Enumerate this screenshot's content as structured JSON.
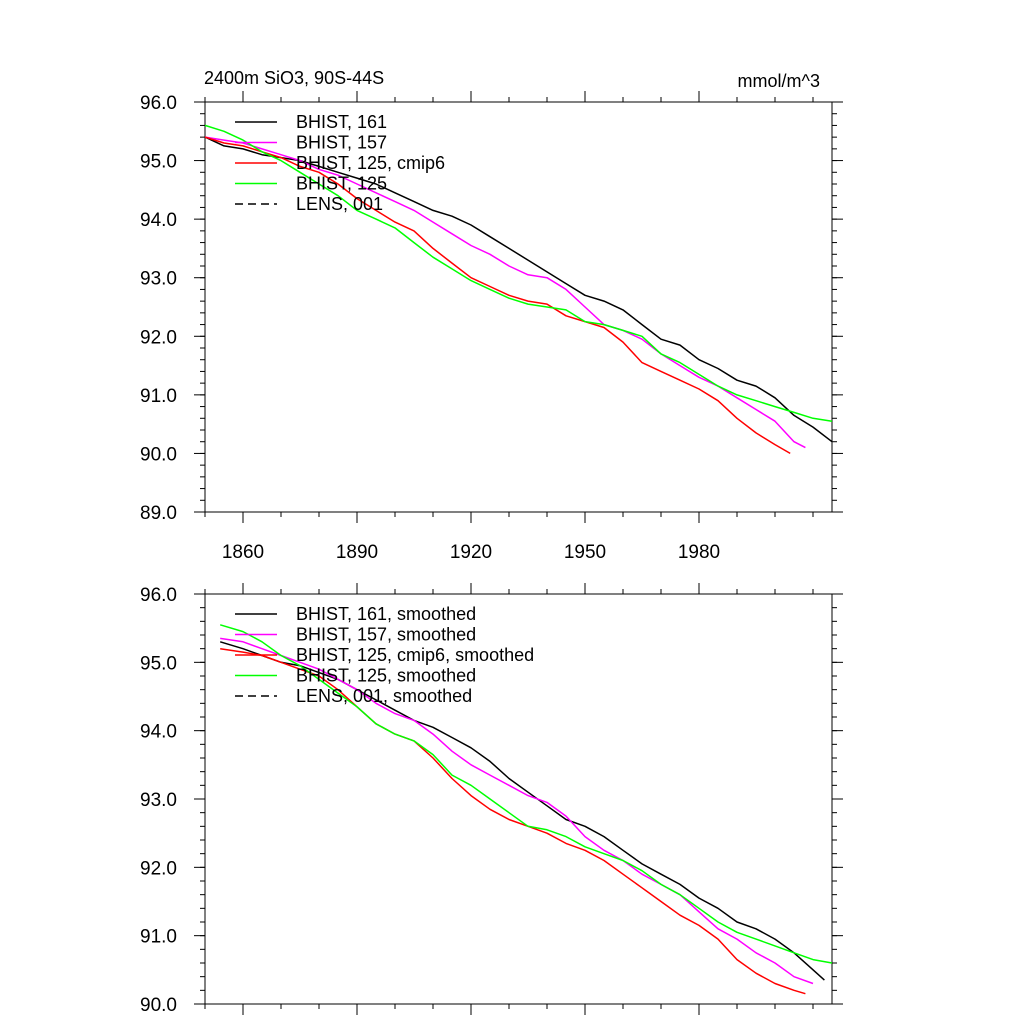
{
  "figure": {
    "title_left": "2400m SiO3, 90S-44S",
    "title_right": "mmol/m^3"
  },
  "chart_data": [
    {
      "type": "line",
      "panel": "top",
      "xlim": [
        1850,
        2015
      ],
      "ylim": [
        89.0,
        96.0
      ],
      "x_ticks": [
        1860,
        1890,
        1920,
        1950,
        1980
      ],
      "x_tick_labels": [
        "1860",
        "1890",
        "1920",
        "1950",
        "1980"
      ],
      "y_ticks": [
        89.0,
        90.0,
        91.0,
        92.0,
        93.0,
        94.0,
        95.0,
        96.0
      ],
      "y_tick_labels": [
        "89.0",
        "90.0",
        "91.0",
        "92.0",
        "93.0",
        "94.0",
        "95.0",
        "96.0"
      ],
      "grid": false,
      "legend": "top-left",
      "series": [
        {
          "name": "BHIST, 161",
          "color": "#000000",
          "dash": "solid",
          "x": [
            1850,
            1855,
            1860,
            1865,
            1870,
            1875,
            1880,
            1885,
            1890,
            1895,
            1900,
            1905,
            1910,
            1915,
            1920,
            1925,
            1930,
            1935,
            1940,
            1945,
            1950,
            1955,
            1960,
            1965,
            1970,
            1975,
            1980,
            1985,
            1990,
            1995,
            2000,
            2005,
            2010,
            2015
          ],
          "y": [
            95.4,
            95.25,
            95.2,
            95.1,
            95.05,
            95.0,
            94.9,
            94.8,
            94.7,
            94.6,
            94.45,
            94.3,
            94.15,
            94.05,
            93.9,
            93.7,
            93.5,
            93.3,
            93.1,
            92.9,
            92.7,
            92.6,
            92.45,
            92.2,
            91.95,
            91.85,
            91.6,
            91.45,
            91.25,
            91.15,
            90.95,
            90.65,
            90.45,
            90.2
          ]
        },
        {
          "name": "BHIST, 157",
          "color": "#ff00ff",
          "dash": "solid",
          "x": [
            1850,
            1855,
            1860,
            1865,
            1870,
            1875,
            1880,
            1885,
            1890,
            1895,
            1900,
            1905,
            1910,
            1915,
            1920,
            1925,
            1930,
            1935,
            1940,
            1945,
            1950,
            1955,
            1960,
            1965,
            1970,
            1975,
            1980,
            1985,
            1990,
            1995,
            2000,
            2005,
            2008
          ],
          "y": [
            95.4,
            95.35,
            95.3,
            95.2,
            95.1,
            95.0,
            94.85,
            94.75,
            94.6,
            94.45,
            94.3,
            94.15,
            93.95,
            93.75,
            93.55,
            93.4,
            93.2,
            93.05,
            93.0,
            92.8,
            92.5,
            92.2,
            92.1,
            91.95,
            91.7,
            91.5,
            91.3,
            91.15,
            90.95,
            90.75,
            90.55,
            90.2,
            90.1
          ]
        },
        {
          "name": "BHIST, 125, cmip6",
          "color": "#ff0000",
          "dash": "solid",
          "x": [
            1850,
            1855,
            1860,
            1865,
            1870,
            1875,
            1880,
            1885,
            1890,
            1895,
            1900,
            1905,
            1910,
            1915,
            1920,
            1925,
            1930,
            1935,
            1940,
            1945,
            1950,
            1955,
            1960,
            1965,
            1970,
            1975,
            1980,
            1985,
            1990,
            1995,
            2000,
            2004
          ],
          "y": [
            95.4,
            95.3,
            95.25,
            95.15,
            95.05,
            94.9,
            94.8,
            94.6,
            94.35,
            94.15,
            93.95,
            93.8,
            93.5,
            93.25,
            93.0,
            92.85,
            92.7,
            92.6,
            92.55,
            92.35,
            92.25,
            92.15,
            91.9,
            91.55,
            91.4,
            91.25,
            91.1,
            90.9,
            90.6,
            90.35,
            90.15,
            90.0
          ]
        },
        {
          "name": "BHIST, 125",
          "color": "#00ff00",
          "dash": "solid",
          "x": [
            1850,
            1855,
            1860,
            1865,
            1870,
            1875,
            1880,
            1885,
            1890,
            1895,
            1900,
            1905,
            1910,
            1915,
            1920,
            1925,
            1930,
            1935,
            1940,
            1945,
            1950,
            1955,
            1960,
            1965,
            1970,
            1975,
            1980,
            1985,
            1990,
            1995,
            2000,
            2005,
            2010,
            2015
          ],
          "y": [
            95.6,
            95.5,
            95.35,
            95.15,
            95.0,
            94.8,
            94.6,
            94.4,
            94.15,
            94.0,
            93.85,
            93.6,
            93.35,
            93.15,
            92.95,
            92.8,
            92.65,
            92.55,
            92.5,
            92.45,
            92.25,
            92.2,
            92.1,
            92.0,
            91.7,
            91.55,
            91.35,
            91.15,
            91.0,
            90.9,
            90.8,
            90.7,
            90.6,
            90.55
          ]
        },
        {
          "name": "LENS, 001",
          "color": "#000000",
          "dash": "dashed",
          "x": [],
          "y": []
        }
      ]
    },
    {
      "type": "line",
      "panel": "bottom",
      "xlim": [
        1850,
        2015
      ],
      "ylim": [
        90.0,
        96.0
      ],
      "x_ticks": [
        1860,
        1890,
        1920,
        1950,
        1980
      ],
      "y_ticks": [
        90.0,
        91.0,
        92.0,
        93.0,
        94.0,
        95.0,
        96.0
      ],
      "y_tick_labels": [
        "90.0",
        "91.0",
        "92.0",
        "93.0",
        "94.0",
        "95.0",
        "96.0"
      ],
      "grid": false,
      "legend": "top-left",
      "series": [
        {
          "name": "BHIST, 161, smoothed",
          "color": "#000000",
          "dash": "solid",
          "x": [
            1854,
            1860,
            1865,
            1870,
            1875,
            1880,
            1885,
            1890,
            1895,
            1900,
            1905,
            1910,
            1915,
            1920,
            1925,
            1930,
            1935,
            1940,
            1945,
            1950,
            1955,
            1960,
            1965,
            1970,
            1975,
            1980,
            1985,
            1990,
            1995,
            2000,
            2005,
            2010,
            2013
          ],
          "y": [
            95.3,
            95.2,
            95.1,
            95.0,
            94.95,
            94.85,
            94.75,
            94.6,
            94.45,
            94.3,
            94.15,
            94.05,
            93.9,
            93.75,
            93.55,
            93.3,
            93.1,
            92.9,
            92.7,
            92.6,
            92.45,
            92.25,
            92.05,
            91.9,
            91.75,
            91.55,
            91.4,
            91.2,
            91.1,
            90.95,
            90.75,
            90.5,
            90.35
          ]
        },
        {
          "name": "BHIST, 157, smoothed",
          "color": "#ff00ff",
          "dash": "solid",
          "x": [
            1854,
            1860,
            1865,
            1870,
            1875,
            1880,
            1885,
            1890,
            1895,
            1900,
            1905,
            1910,
            1915,
            1920,
            1925,
            1930,
            1935,
            1940,
            1945,
            1950,
            1955,
            1960,
            1965,
            1970,
            1975,
            1980,
            1985,
            1990,
            1995,
            2000,
            2005,
            2010
          ],
          "y": [
            95.35,
            95.3,
            95.2,
            95.1,
            95.0,
            94.9,
            94.75,
            94.6,
            94.4,
            94.25,
            94.15,
            93.95,
            93.7,
            93.5,
            93.35,
            93.2,
            93.05,
            92.95,
            92.75,
            92.45,
            92.25,
            92.1,
            91.9,
            91.75,
            91.6,
            91.35,
            91.1,
            90.95,
            90.75,
            90.6,
            90.4,
            90.3
          ]
        },
        {
          "name": "BHIST, 125, cmip6, smoothed",
          "color": "#ff0000",
          "dash": "solid",
          "x": [
            1854,
            1860,
            1865,
            1870,
            1875,
            1880,
            1885,
            1890,
            1895,
            1900,
            1905,
            1910,
            1915,
            1920,
            1925,
            1930,
            1935,
            1940,
            1945,
            1950,
            1955,
            1960,
            1965,
            1970,
            1975,
            1980,
            1985,
            1990,
            1995,
            2000,
            2005,
            2008
          ],
          "y": [
            95.2,
            95.15,
            95.1,
            95.0,
            94.9,
            94.8,
            94.6,
            94.35,
            94.1,
            93.95,
            93.85,
            93.6,
            93.3,
            93.05,
            92.85,
            92.7,
            92.6,
            92.5,
            92.35,
            92.25,
            92.1,
            91.9,
            91.7,
            91.5,
            91.3,
            91.15,
            90.95,
            90.65,
            90.45,
            90.3,
            90.2,
            90.15
          ]
        },
        {
          "name": "BHIST, 125, smoothed",
          "color": "#00ff00",
          "dash": "solid",
          "x": [
            1854,
            1860,
            1865,
            1870,
            1875,
            1880,
            1885,
            1890,
            1895,
            1900,
            1905,
            1910,
            1915,
            1920,
            1925,
            1930,
            1935,
            1940,
            1945,
            1950,
            1955,
            1960,
            1965,
            1970,
            1975,
            1980,
            1985,
            1990,
            1995,
            2000,
            2005,
            2010,
            2015
          ],
          "y": [
            95.55,
            95.45,
            95.3,
            95.1,
            94.95,
            94.75,
            94.55,
            94.35,
            94.1,
            93.95,
            93.85,
            93.65,
            93.35,
            93.2,
            93.0,
            92.8,
            92.6,
            92.55,
            92.45,
            92.3,
            92.2,
            92.1,
            91.95,
            91.75,
            91.6,
            91.4,
            91.2,
            91.05,
            90.95,
            90.85,
            90.75,
            90.65,
            90.6
          ]
        },
        {
          "name": "LENS, 001, smoothed",
          "color": "#000000",
          "dash": "dashed",
          "x": [],
          "y": []
        }
      ]
    }
  ]
}
